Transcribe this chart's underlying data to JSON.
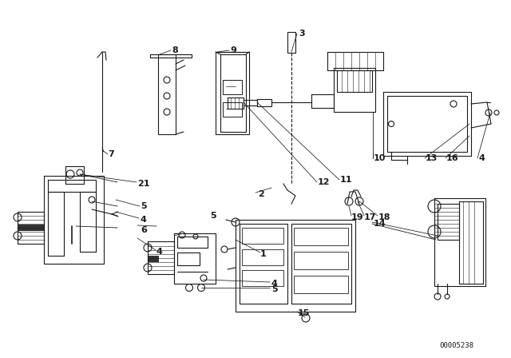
{
  "background_color": "#ffffff",
  "line_color": "#1a1a1a",
  "part_number_text": "00005238",
  "figsize": [
    6.4,
    4.48
  ],
  "dpi": 100,
  "label_positions": [
    [
      "1",
      326,
      318
    ],
    [
      "2",
      323,
      243
    ],
    [
      "3",
      374,
      42
    ],
    [
      "4",
      176,
      275
    ],
    [
      "4",
      196,
      315
    ],
    [
      "4",
      340,
      355
    ],
    [
      "4",
      599,
      198
    ],
    [
      "5",
      176,
      258
    ],
    [
      "5",
      263,
      270
    ],
    [
      "5",
      340,
      362
    ],
    [
      "6",
      176,
      288
    ],
    [
      "7",
      135,
      193
    ],
    [
      "8",
      215,
      63
    ],
    [
      "9",
      288,
      63
    ],
    [
      "10",
      468,
      198
    ],
    [
      "11",
      426,
      225
    ],
    [
      "12",
      398,
      228
    ],
    [
      "13",
      533,
      198
    ],
    [
      "14",
      468,
      280
    ],
    [
      "15",
      373,
      392
    ],
    [
      "16",
      559,
      198
    ],
    [
      "17",
      456,
      272
    ],
    [
      "18",
      474,
      272
    ],
    [
      "19",
      440,
      272
    ],
    [
      "21",
      172,
      230
    ]
  ]
}
